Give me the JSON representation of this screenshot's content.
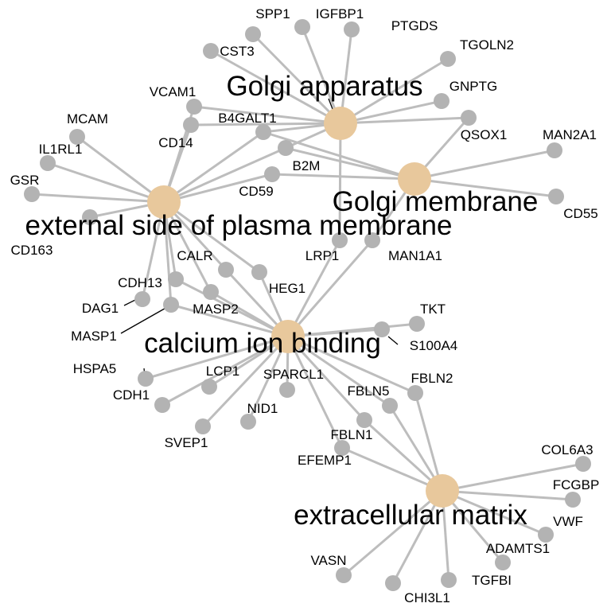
{
  "colors": {
    "edge": "#bdbdbd",
    "gene_node": "#b3b3b3",
    "term_node": "#e8c89c",
    "label": "#000000",
    "background": "#ffffff"
  },
  "terms": [
    {
      "id": "golgi_apparatus",
      "label": "Golgi apparatus"
    },
    {
      "id": "golgi_membrane",
      "label": "Golgi membrane"
    },
    {
      "id": "external_side",
      "label": "external side of plasma membrane"
    },
    {
      "id": "calcium_binding",
      "label": "calcium ion binding"
    },
    {
      "id": "ecm",
      "label": "extracellular matrix"
    }
  ],
  "genes": [
    {
      "id": "SPP1",
      "label": "SPP1",
      "terms": [
        "golgi_apparatus"
      ]
    },
    {
      "id": "IGFBP1",
      "label": "IGFBP1",
      "terms": [
        "golgi_apparatus"
      ]
    },
    {
      "id": "PTGDS",
      "label": "PTGDS",
      "terms": [
        "golgi_apparatus"
      ]
    },
    {
      "id": "CST3",
      "label": "CST3",
      "terms": [
        "golgi_apparatus"
      ]
    },
    {
      "id": "TGOLN2",
      "label": "TGOLN2",
      "terms": [
        "golgi_apparatus"
      ]
    },
    {
      "id": "GNPTG",
      "label": "GNPTG",
      "terms": [
        "golgi_apparatus"
      ]
    },
    {
      "id": "QSOX1",
      "label": "QSOX1",
      "terms": [
        "golgi_apparatus",
        "golgi_membrane"
      ]
    },
    {
      "id": "VCAM1",
      "label": "VCAM1",
      "terms": [
        "golgi_apparatus",
        "external_side"
      ]
    },
    {
      "id": "B4GALT1",
      "label": "B4GALT1",
      "terms": [
        "golgi_apparatus",
        "golgi_membrane",
        "external_side"
      ]
    },
    {
      "id": "CD14",
      "label": "CD14",
      "terms": [
        "golgi_apparatus",
        "external_side"
      ]
    },
    {
      "id": "B2M",
      "label": "B2M",
      "terms": [
        "golgi_apparatus",
        "golgi_membrane",
        "external_side"
      ]
    },
    {
      "id": "MCAM",
      "label": "MCAM",
      "terms": [
        "external_side"
      ]
    },
    {
      "id": "IL1RL1",
      "label": "IL1RL1",
      "terms": [
        "external_side"
      ]
    },
    {
      "id": "GSR",
      "label": "GSR",
      "terms": [
        "external_side"
      ]
    },
    {
      "id": "CD163",
      "label": "CD163",
      "terms": [
        "external_side"
      ]
    },
    {
      "id": "CD59",
      "label": "CD59",
      "terms": [
        "golgi_membrane",
        "external_side"
      ]
    },
    {
      "id": "MAN2A1",
      "label": "MAN2A1",
      "terms": [
        "golgi_membrane"
      ]
    },
    {
      "id": "CD55",
      "label": "CD55",
      "terms": [
        "golgi_membrane"
      ]
    },
    {
      "id": "LRP1",
      "label": "LRP1",
      "terms": [
        "golgi_apparatus",
        "calcium_binding"
      ]
    },
    {
      "id": "MAN1A1",
      "label": "MAN1A1",
      "terms": [
        "golgi_membrane",
        "calcium_binding"
      ]
    },
    {
      "id": "CALR",
      "label": "CALR",
      "terms": [
        "external_side",
        "calcium_binding"
      ]
    },
    {
      "id": "HEG1",
      "label": "HEG1",
      "terms": [
        "external_side",
        "calcium_binding"
      ]
    },
    {
      "id": "CDH13",
      "label": "CDH13",
      "terms": [
        "external_side",
        "calcium_binding"
      ]
    },
    {
      "id": "DAG1",
      "label": "DAG1",
      "terms": [
        "external_side"
      ]
    },
    {
      "id": "MASP2",
      "label": "MASP2",
      "terms": [
        "external_side",
        "calcium_binding"
      ]
    },
    {
      "id": "MASP1",
      "label": "MASP1",
      "terms": [
        "external_side",
        "calcium_binding"
      ]
    },
    {
      "id": "TKT",
      "label": "TKT",
      "terms": [
        "calcium_binding"
      ]
    },
    {
      "id": "S100A4",
      "label": "S100A4",
      "terms": [
        "calcium_binding"
      ]
    },
    {
      "id": "HSPA5",
      "label": "HSPA5",
      "terms": [
        "calcium_binding"
      ]
    },
    {
      "id": "LCP1",
      "label": "LCP1",
      "terms": [
        "calcium_binding"
      ]
    },
    {
      "id": "SPARCL1",
      "label": "SPARCL1",
      "terms": [
        "calcium_binding"
      ]
    },
    {
      "id": "FBLN2",
      "label": "FBLN2",
      "terms": [
        "calcium_binding",
        "ecm"
      ]
    },
    {
      "id": "CDH1",
      "label": "CDH1",
      "terms": [
        "calcium_binding"
      ]
    },
    {
      "id": "FBLN5",
      "label": "FBLN5",
      "terms": [
        "calcium_binding",
        "ecm"
      ]
    },
    {
      "id": "NID1",
      "label": "NID1",
      "terms": [
        "calcium_binding"
      ]
    },
    {
      "id": "SVEP1",
      "label": "SVEP1",
      "terms": [
        "calcium_binding"
      ]
    },
    {
      "id": "FBLN1",
      "label": "FBLN1",
      "terms": [
        "calcium_binding",
        "ecm"
      ]
    },
    {
      "id": "EFEMP1",
      "label": "EFEMP1",
      "terms": [
        "calcium_binding",
        "ecm"
      ]
    },
    {
      "id": "COL6A3",
      "label": "COL6A3",
      "terms": [
        "ecm"
      ]
    },
    {
      "id": "FCGBP",
      "label": "FCGBP",
      "terms": [
        "ecm"
      ]
    },
    {
      "id": "VWF",
      "label": "VWF",
      "terms": [
        "ecm"
      ]
    },
    {
      "id": "ADAMTS1",
      "label": "ADAMTS1",
      "terms": [
        "ecm"
      ]
    },
    {
      "id": "VASN",
      "label": "VASN",
      "terms": [
        "ecm"
      ]
    },
    {
      "id": "TGFBI",
      "label": "TGFBI",
      "terms": [
        "ecm"
      ]
    },
    {
      "id": "CHI3L1",
      "label": "CHI3L1",
      "terms": [
        "ecm"
      ]
    }
  ]
}
